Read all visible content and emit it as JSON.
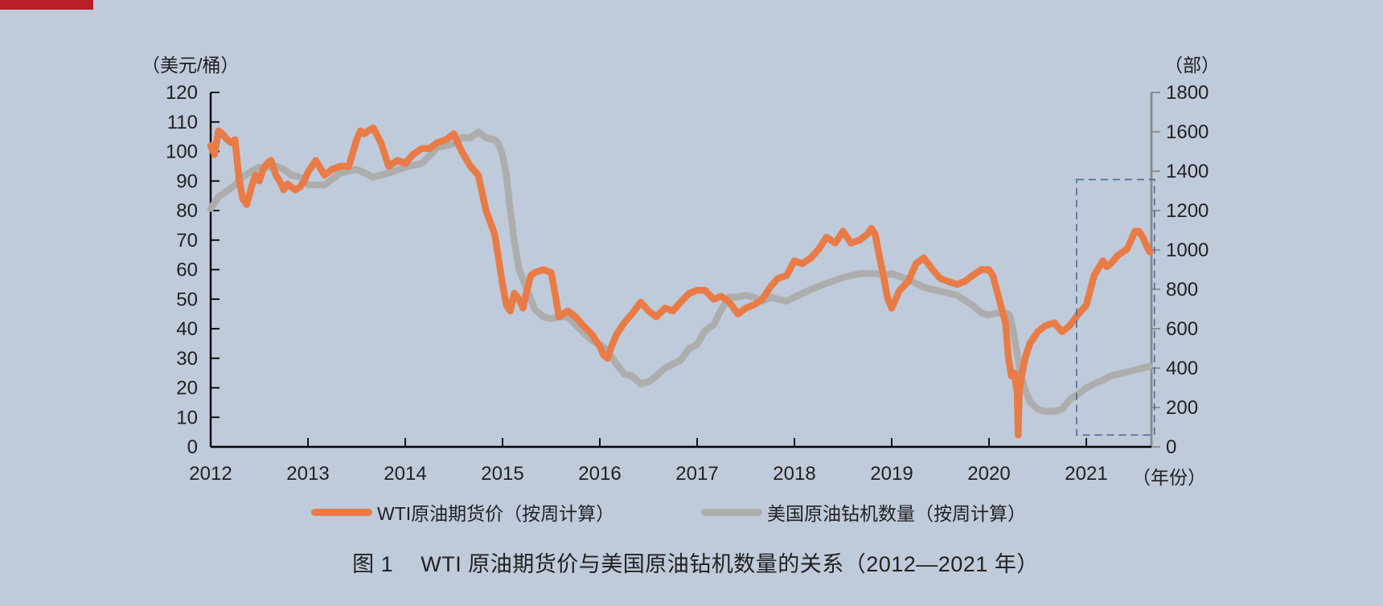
{
  "chart_data": {
    "type": "line",
    "title": "图 1    WTI 原油期货价与美国原油钻机数量的关系（2012—2021 年）",
    "xlabel": "（年份）",
    "ylabel_left": "（美元/桶）",
    "ylabel_right": "（部）",
    "x_ticks": [
      "2012",
      "2013",
      "2014",
      "2015",
      "2016",
      "2017",
      "2018",
      "2019",
      "2020",
      "2021"
    ],
    "y_left_ticks": [
      0,
      10,
      20,
      30,
      40,
      50,
      60,
      70,
      80,
      90,
      100,
      110,
      120
    ],
    "y_right_ticks": [
      0,
      200,
      400,
      600,
      800,
      1000,
      1200,
      1400,
      1600,
      1800
    ],
    "ylim_left": [
      0,
      120
    ],
    "ylim_right": [
      0,
      1800
    ],
    "xlim": [
      2012.0,
      2021.67
    ],
    "grid": false,
    "legend_position": "bottom",
    "highlight_box": {
      "x_from": 2020.9,
      "x_to": 2021.7,
      "y_left_from": 4,
      "y_left_to": 90.5,
      "style": "dashed",
      "color": "#4A6A96"
    },
    "series": [
      {
        "name": "WTI原油期货价（按周计算）",
        "axis": "left",
        "color": "#E97B47",
        "x": [
          2012.0,
          2012.04,
          2012.08,
          2012.12,
          2012.17,
          2012.21,
          2012.25,
          2012.29,
          2012.33,
          2012.37,
          2012.42,
          2012.46,
          2012.5,
          2012.54,
          2012.58,
          2012.62,
          2012.67,
          2012.71,
          2012.75,
          2012.79,
          2012.83,
          2012.87,
          2012.92,
          2012.96,
          2013.0,
          2013.08,
          2013.17,
          2013.25,
          2013.33,
          2013.42,
          2013.5,
          2013.54,
          2013.58,
          2013.62,
          2013.67,
          2013.75,
          2013.83,
          2013.92,
          2014.0,
          2014.08,
          2014.17,
          2014.25,
          2014.33,
          2014.42,
          2014.5,
          2014.58,
          2014.67,
          2014.75,
          2014.83,
          2014.92,
          2015.0,
          2015.04,
          2015.08,
          2015.12,
          2015.17,
          2015.21,
          2015.25,
          2015.29,
          2015.33,
          2015.42,
          2015.5,
          2015.54,
          2015.58,
          2015.62,
          2015.67,
          2015.75,
          2015.83,
          2015.92,
          2016.0,
          2016.04,
          2016.08,
          2016.12,
          2016.17,
          2016.25,
          2016.33,
          2016.42,
          2016.5,
          2016.58,
          2016.67,
          2016.75,
          2016.83,
          2016.92,
          2017.0,
          2017.08,
          2017.17,
          2017.25,
          2017.33,
          2017.42,
          2017.5,
          2017.58,
          2017.67,
          2017.75,
          2017.83,
          2017.92,
          2018.0,
          2018.08,
          2018.17,
          2018.25,
          2018.33,
          2018.42,
          2018.5,
          2018.58,
          2018.67,
          2018.75,
          2018.79,
          2018.83,
          2018.87,
          2018.92,
          2018.96,
          2019.0,
          2019.08,
          2019.17,
          2019.25,
          2019.33,
          2019.42,
          2019.5,
          2019.58,
          2019.67,
          2019.75,
          2019.83,
          2019.92,
          2020.0,
          2020.04,
          2020.08,
          2020.12,
          2020.17,
          2020.2,
          2020.23,
          2020.26,
          2020.29,
          2020.3,
          2020.31,
          2020.33,
          2020.37,
          2020.42,
          2020.5,
          2020.58,
          2020.67,
          2020.75,
          2020.83,
          2020.92,
          2021.0,
          2021.08,
          2021.17,
          2021.21,
          2021.25,
          2021.33,
          2021.42,
          2021.46,
          2021.5,
          2021.54,
          2021.58,
          2021.62,
          2021.65
        ],
        "values": [
          102,
          99,
          107,
          106,
          104,
          103,
          104,
          91,
          84,
          82,
          88,
          92,
          90,
          94,
          96,
          97,
          92,
          90,
          87,
          89,
          88,
          87,
          88,
          90,
          93,
          97,
          92,
          94,
          95,
          95,
          104,
          107,
          106,
          107,
          108,
          103,
          95,
          97,
          96,
          99,
          101,
          101,
          103,
          104,
          106,
          100,
          95,
          92,
          80,
          72,
          55,
          48,
          46,
          52,
          50,
          47,
          53,
          58,
          59,
          60,
          59,
          52,
          44,
          45,
          46,
          44,
          41,
          38,
          34,
          31,
          30,
          34,
          38,
          42,
          45,
          49,
          46,
          44,
          47,
          46,
          49,
          52,
          53,
          53,
          50,
          51,
          49,
          45,
          47,
          48,
          50,
          54,
          57,
          58,
          63,
          62,
          64,
          67,
          71,
          69,
          73,
          69,
          70,
          72,
          74,
          72,
          65,
          57,
          50,
          47,
          53,
          56,
          62,
          64,
          60,
          57,
          56,
          55,
          56,
          58,
          60,
          60,
          58,
          53,
          48,
          42,
          30,
          24,
          25,
          18,
          4,
          18,
          23,
          30,
          35,
          39,
          41,
          42,
          39,
          41,
          45,
          48,
          58,
          63,
          61,
          62,
          65,
          67,
          70,
          73,
          73,
          71,
          68,
          66
        ]
      },
      {
        "name": "美国原油钻机数量（按周计算）",
        "axis": "right",
        "color": "#ADADAD",
        "x": [
          2012.0,
          2012.08,
          2012.17,
          2012.25,
          2012.33,
          2012.42,
          2012.5,
          2012.58,
          2012.67,
          2012.75,
          2012.83,
          2012.92,
          2013.0,
          2013.17,
          2013.33,
          2013.5,
          2013.67,
          2013.83,
          2014.0,
          2014.17,
          2014.33,
          2014.5,
          2014.58,
          2014.67,
          2014.75,
          2014.83,
          2014.92,
          2014.96,
          2015.0,
          2015.04,
          2015.08,
          2015.12,
          2015.17,
          2015.25,
          2015.33,
          2015.42,
          2015.5,
          2015.58,
          2015.67,
          2015.75,
          2015.83,
          2015.92,
          2016.0,
          2016.08,
          2016.17,
          2016.25,
          2016.33,
          2016.42,
          2016.5,
          2016.58,
          2016.67,
          2016.75,
          2016.83,
          2016.92,
          2017.0,
          2017.08,
          2017.17,
          2017.25,
          2017.33,
          2017.42,
          2017.5,
          2017.58,
          2017.67,
          2017.75,
          2017.83,
          2017.92,
          2018.0,
          2018.17,
          2018.33,
          2018.5,
          2018.67,
          2018.83,
          2018.92,
          2019.0,
          2019.17,
          2019.33,
          2019.5,
          2019.67,
          2019.83,
          2019.92,
          2020.0,
          2020.08,
          2020.17,
          2020.21,
          2020.25,
          2020.29,
          2020.33,
          2020.37,
          2020.42,
          2020.5,
          2020.58,
          2020.67,
          2020.75,
          2020.83,
          2020.92,
          2021.0,
          2021.08,
          2021.17,
          2021.25,
          2021.33,
          2021.42,
          2021.5,
          2021.58,
          2021.65
        ],
        "values": [
          1210,
          1270,
          1300,
          1330,
          1370,
          1400,
          1420,
          1420,
          1425,
          1410,
          1380,
          1370,
          1330,
          1330,
          1390,
          1410,
          1370,
          1390,
          1420,
          1440,
          1520,
          1540,
          1570,
          1570,
          1600,
          1570,
          1560,
          1540,
          1480,
          1380,
          1200,
          1050,
          900,
          800,
          700,
          660,
          650,
          660,
          660,
          620,
          580,
          540,
          520,
          490,
          420,
          370,
          360,
          320,
          330,
          360,
          400,
          420,
          440,
          500,
          520,
          590,
          620,
          700,
          760,
          760,
          770,
          760,
          740,
          760,
          750,
          740,
          760,
          800,
          830,
          860,
          880,
          880,
          870,
          880,
          850,
          810,
          790,
          770,
          720,
          680,
          670,
          680,
          680,
          670,
          590,
          470,
          360,
          290,
          230,
          190,
          180,
          180,
          190,
          240,
          270,
          300,
          320,
          340,
          360,
          370,
          380,
          390,
          400,
          410
        ]
      }
    ]
  },
  "header": {
    "left_unit": "（美元/桶）",
    "right_unit": "（部）",
    "x_unit": "（年份）"
  },
  "legend": {
    "items": [
      {
        "label": "WTI原油期货价（按周计算）",
        "color": "#E97B47"
      },
      {
        "label": "美国原油钻机数量（按周计算）",
        "color": "#ADADAD"
      }
    ]
  },
  "caption": {
    "figure_no": "图 1",
    "text": "WTI 原油期货价与美国原油钻机数量的关系（2012—2021 年）"
  },
  "colors": {
    "background": "#BFCBDA",
    "corner_bar": "#B81F26",
    "left_axis": "#000000",
    "right_axis": "#8A8A8A",
    "text": "#231F20"
  }
}
